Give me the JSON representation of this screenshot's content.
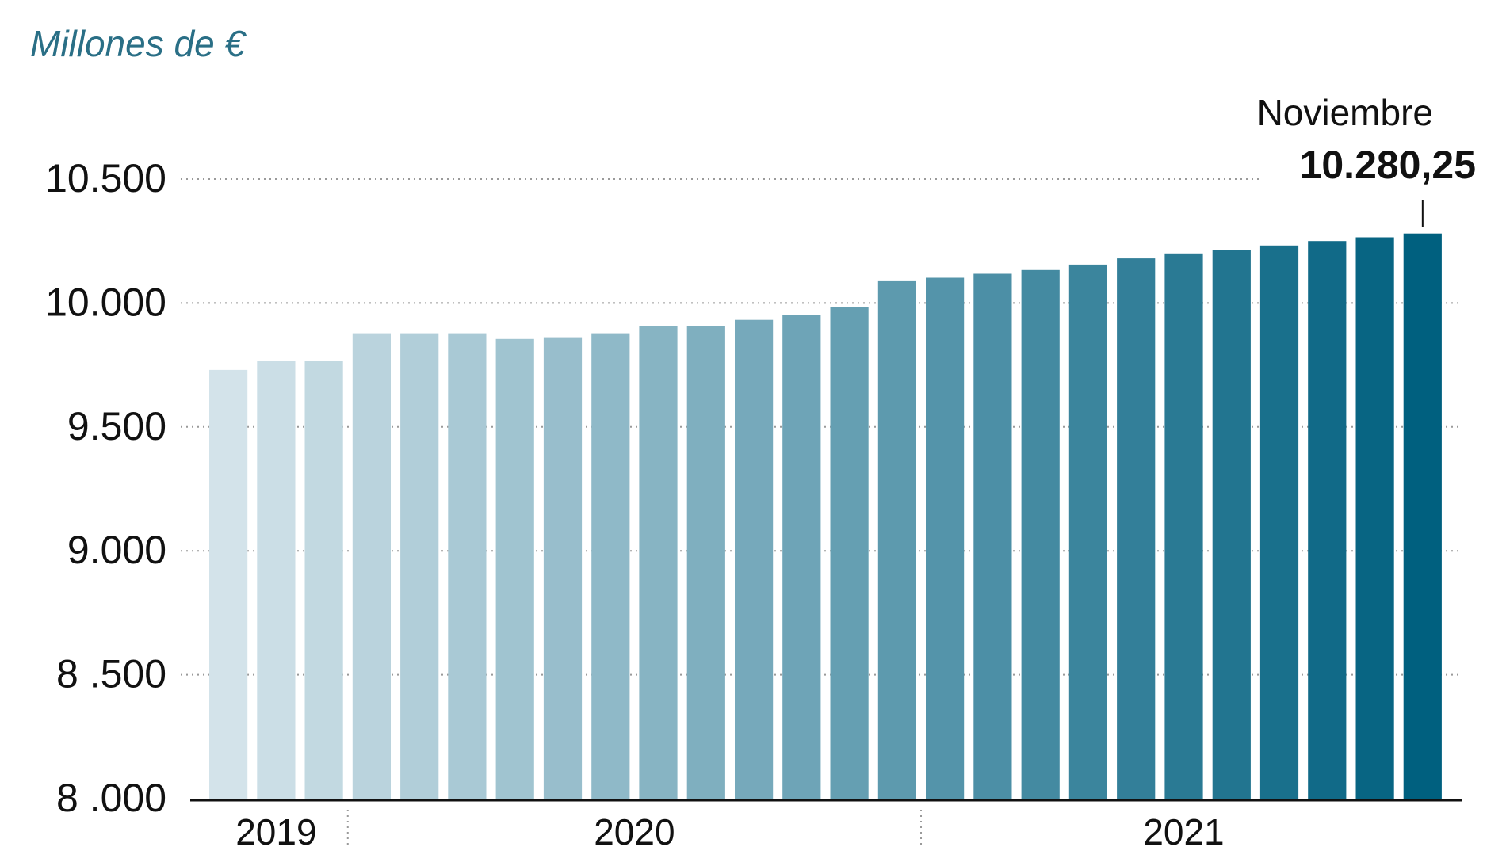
{
  "colors": {
    "subtitle": "#2a6f86",
    "axis": "#111111",
    "grid": "#9a9a9a",
    "bar_light": "#d3e3ea",
    "bar_dark": "#00607f"
  },
  "chart_data": {
    "type": "bar",
    "title": "",
    "subtitle": "Millones de €",
    "xlabel": "",
    "ylabel": "",
    "ylim": [
      8000,
      10500
    ],
    "yticks": [
      8000,
      8500,
      9000,
      9500,
      10000,
      10500
    ],
    "ytick_labels": [
      "8 .000",
      "8 .500",
      "9.000",
      "9.500",
      "10.000",
      "10.500"
    ],
    "year_labels": [
      "2019",
      "2020",
      "2021"
    ],
    "year_groups": [
      {
        "label": "2019",
        "start": 0,
        "end": 2
      },
      {
        "label": "2020",
        "start": 3,
        "end": 14
      },
      {
        "label": "2021",
        "start": 15,
        "end": 25
      }
    ],
    "values": [
      9730,
      9765,
      9765,
      9878,
      9878,
      9878,
      9855,
      9862,
      9878,
      9908,
      9908,
      9932,
      9953,
      9985,
      10088,
      10102,
      10118,
      10133,
      10155,
      10180,
      10200,
      10215,
      10232,
      10250,
      10265,
      10280.25
    ],
    "grid": true,
    "annotation": {
      "index": 25,
      "label": "Noviembre",
      "value_text": "10.280,25"
    }
  }
}
